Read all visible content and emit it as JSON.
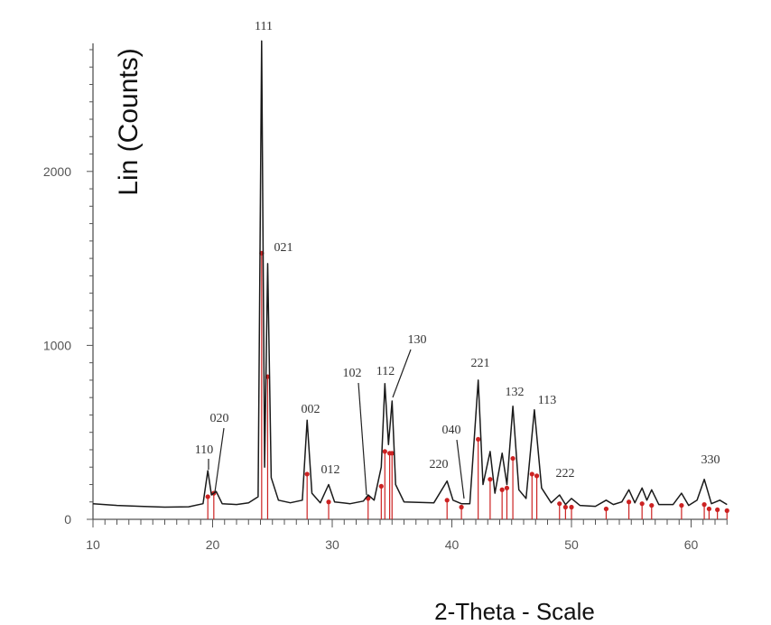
{
  "chart_data": {
    "type": "line",
    "title": "",
    "xlabel": "2-Theta - Scale",
    "ylabel": "Lin (Counts)",
    "xlim": [
      10,
      63
    ],
    "ylim": [
      0,
      2750
    ],
    "x_ticks": [
      10,
      20,
      30,
      40,
      50,
      60
    ],
    "y_ticks": [
      0,
      1000,
      2000
    ],
    "grid": false,
    "series": [
      {
        "values": [
          [
            10,
            90
          ],
          [
            12,
            80
          ],
          [
            14,
            75
          ],
          [
            16,
            70
          ],
          [
            18,
            72
          ],
          [
            19.2,
            90
          ],
          [
            19.6,
            280
          ],
          [
            19.9,
            140
          ],
          [
            20.3,
            160
          ],
          [
            20.8,
            90
          ],
          [
            22,
            85
          ],
          [
            23,
            95
          ],
          [
            23.8,
            130
          ],
          [
            24.1,
            2750
          ],
          [
            24.35,
            300
          ],
          [
            24.6,
            1470
          ],
          [
            24.9,
            240
          ],
          [
            25.5,
            110
          ],
          [
            26.5,
            95
          ],
          [
            27.5,
            110
          ],
          [
            27.9,
            570
          ],
          [
            28.3,
            150
          ],
          [
            29,
            95
          ],
          [
            29.7,
            200
          ],
          [
            30.2,
            100
          ],
          [
            31.5,
            90
          ],
          [
            32.6,
            105
          ],
          [
            33,
            140
          ],
          [
            33.5,
            110
          ],
          [
            34.1,
            300
          ],
          [
            34.4,
            780
          ],
          [
            34.7,
            430
          ],
          [
            35,
            680
          ],
          [
            35.3,
            200
          ],
          [
            36,
            100
          ],
          [
            38.5,
            95
          ],
          [
            39.6,
            220
          ],
          [
            40.1,
            110
          ],
          [
            40.8,
            90
          ],
          [
            41.5,
            90
          ],
          [
            42.2,
            800
          ],
          [
            42.6,
            200
          ],
          [
            43.2,
            390
          ],
          [
            43.6,
            150
          ],
          [
            44.2,
            380
          ],
          [
            44.6,
            200
          ],
          [
            45.1,
            650
          ],
          [
            45.6,
            170
          ],
          [
            46.2,
            120
          ],
          [
            46.9,
            630
          ],
          [
            47.5,
            180
          ],
          [
            48.3,
            95
          ],
          [
            49,
            140
          ],
          [
            49.5,
            85
          ],
          [
            50,
            120
          ],
          [
            50.7,
            80
          ],
          [
            52,
            75
          ],
          [
            52.9,
            110
          ],
          [
            53.5,
            85
          ],
          [
            54.2,
            100
          ],
          [
            54.8,
            170
          ],
          [
            55.3,
            95
          ],
          [
            55.9,
            180
          ],
          [
            56.3,
            110
          ],
          [
            56.7,
            170
          ],
          [
            57.3,
            85
          ],
          [
            58.5,
            85
          ],
          [
            59.2,
            150
          ],
          [
            59.8,
            80
          ],
          [
            60.5,
            110
          ],
          [
            61.1,
            230
          ],
          [
            61.7,
            90
          ],
          [
            62.4,
            110
          ],
          [
            63,
            85
          ]
        ]
      }
    ],
    "reference_lines": [
      [
        19.6,
        130
      ],
      [
        20.1,
        150
      ],
      [
        24.1,
        1530
      ],
      [
        24.6,
        820
      ],
      [
        27.9,
        260
      ],
      [
        29.7,
        100
      ],
      [
        33,
        120
      ],
      [
        34.1,
        190
      ],
      [
        34.4,
        390
      ],
      [
        34.8,
        380
      ],
      [
        35,
        380
      ],
      [
        39.6,
        110
      ],
      [
        40.8,
        70
      ],
      [
        42.2,
        460
      ],
      [
        43.2,
        230
      ],
      [
        44.2,
        170
      ],
      [
        44.6,
        180
      ],
      [
        45.1,
        350
      ],
      [
        46.7,
        260
      ],
      [
        47.1,
        250
      ],
      [
        49,
        90
      ],
      [
        49.5,
        70
      ],
      [
        50,
        70
      ],
      [
        52.9,
        60
      ],
      [
        54.8,
        100
      ],
      [
        55.9,
        90
      ],
      [
        56.7,
        80
      ],
      [
        59.2,
        80
      ],
      [
        61.1,
        85
      ],
      [
        61.5,
        60
      ],
      [
        62.2,
        55
      ],
      [
        63,
        50
      ]
    ],
    "annotations": [
      {
        "text": "111",
        "x": 24.1,
        "y": 2750
      },
      {
        "text": "021",
        "x": 24.6,
        "y": 1470
      },
      {
        "text": "110",
        "x": 19.6,
        "y": 280
      },
      {
        "text": "020",
        "x": 20.2,
        "y": 160
      },
      {
        "text": "002",
        "x": 27.9,
        "y": 570
      },
      {
        "text": "012",
        "x": 29.7,
        "y": 200
      },
      {
        "text": "102",
        "x": 33,
        "y": 140
      },
      {
        "text": "112",
        "x": 34.4,
        "y": 780
      },
      {
        "text": "130",
        "x": 35,
        "y": 680
      },
      {
        "text": "220",
        "x": 39.6,
        "y": 220
      },
      {
        "text": "040",
        "x": 40.8,
        "y": 100
      },
      {
        "text": "221",
        "x": 42.2,
        "y": 800
      },
      {
        "text": "132",
        "x": 45.1,
        "y": 650
      },
      {
        "text": "113",
        "x": 46.9,
        "y": 630
      },
      {
        "text": "222",
        "x": 49,
        "y": 140
      },
      {
        "text": "330",
        "x": 61.1,
        "y": 230
      }
    ],
    "colors": {
      "pattern": "#1a1a1a",
      "reference": "#cc2222",
      "axis": "#555555"
    }
  }
}
